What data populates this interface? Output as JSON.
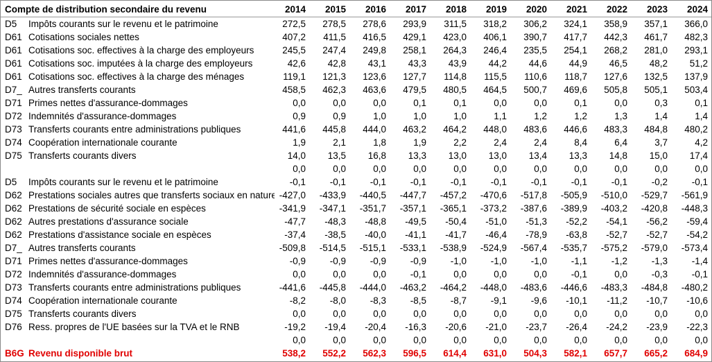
{
  "table": {
    "title": "Compte de distribution secondaire du revenu",
    "years": [
      "2014",
      "2015",
      "2016",
      "2017",
      "2018",
      "2019",
      "2020",
      "2021",
      "2022",
      "2023",
      "2024"
    ],
    "rows": [
      {
        "code": "D5",
        "label": "Impôts courants sur le revenu et le patrimoine",
        "values": [
          "272,5",
          "278,5",
          "278,6",
          "293,9",
          "311,5",
          "318,2",
          "306,2",
          "324,1",
          "358,9",
          "357,1",
          "366,0"
        ]
      },
      {
        "code": "D61",
        "label": "Cotisations sociales nettes",
        "values": [
          "407,2",
          "411,5",
          "416,5",
          "429,1",
          "423,0",
          "406,1",
          "390,7",
          "417,7",
          "442,3",
          "461,7",
          "482,3"
        ]
      },
      {
        "code": "D61",
        "label": "Cotisations soc. effectives à la charge des employeurs",
        "values": [
          "245,5",
          "247,4",
          "249,8",
          "258,1",
          "264,3",
          "246,4",
          "235,5",
          "254,1",
          "268,2",
          "281,0",
          "293,1"
        ]
      },
      {
        "code": "D61",
        "label": "Cotisations soc. imputées à la charge des employeurs",
        "values": [
          "42,6",
          "42,8",
          "43,1",
          "43,3",
          "43,9",
          "44,2",
          "44,6",
          "44,9",
          "46,5",
          "48,2",
          "51,2"
        ]
      },
      {
        "code": "D61",
        "label": "Cotisations soc. effectives à la charge des ménages",
        "values": [
          "119,1",
          "121,3",
          "123,6",
          "127,7",
          "114,8",
          "115,5",
          "110,6",
          "118,7",
          "127,6",
          "132,5",
          "137,9"
        ]
      },
      {
        "code": "D7_",
        "label": "Autres transferts courants",
        "values": [
          "458,5",
          "462,3",
          "463,6",
          "479,5",
          "480,5",
          "464,5",
          "500,7",
          "469,6",
          "505,8",
          "505,1",
          "503,4"
        ]
      },
      {
        "code": "D71",
        "label": "Primes nettes d'assurance-dommages",
        "values": [
          "0,0",
          "0,0",
          "0,0",
          "0,1",
          "0,1",
          "0,0",
          "0,0",
          "0,1",
          "0,0",
          "0,3",
          "0,1"
        ]
      },
      {
        "code": "D72",
        "label": "Indemnités d'assurance-dommages",
        "values": [
          "0,9",
          "0,9",
          "1,0",
          "1,0",
          "1,0",
          "1,1",
          "1,2",
          "1,2",
          "1,3",
          "1,4",
          "1,4"
        ]
      },
      {
        "code": "D73",
        "label": "Transferts courants entre administrations publiques",
        "values": [
          "441,6",
          "445,8",
          "444,0",
          "463,2",
          "464,2",
          "448,0",
          "483,6",
          "446,6",
          "483,3",
          "484,8",
          "480,2"
        ]
      },
      {
        "code": "D74",
        "label": "Coopération internationale courante",
        "values": [
          "1,9",
          "2,1",
          "1,8",
          "1,9",
          "2,2",
          "2,4",
          "2,4",
          "8,4",
          "6,4",
          "3,7",
          "4,2"
        ]
      },
      {
        "code": "D75",
        "label": "Transferts courants divers",
        "values": [
          "14,0",
          "13,5",
          "16,8",
          "13,3",
          "13,0",
          "13,0",
          "13,4",
          "13,3",
          "14,8",
          "15,0",
          "17,4"
        ]
      },
      {
        "values": [
          "0,0",
          "0,0",
          "0,0",
          "0,0",
          "0,0",
          "0,0",
          "0,0",
          "0,0",
          "0,0",
          "0,0",
          "0,0"
        ]
      },
      {
        "code": "D5",
        "label": "Impôts courants sur le revenu et le patrimoine",
        "values": [
          "-0,1",
          "-0,1",
          "-0,1",
          "-0,1",
          "-0,1",
          "-0,1",
          "-0,1",
          "-0,1",
          "-0,1",
          "-0,2",
          "-0,1"
        ]
      },
      {
        "code": "D62",
        "label": "Prestations sociales autres que transferts sociaux en nature",
        "values": [
          "-427,0",
          "-433,9",
          "-440,5",
          "-447,7",
          "-457,2",
          "-470,6",
          "-517,8",
          "-505,9",
          "-510,0",
          "-529,7",
          "-561,9"
        ]
      },
      {
        "code": "D62",
        "label": "Prestations de sécurité sociale en espèces",
        "values": [
          "-341,9",
          "-347,1",
          "-351,7",
          "-357,1",
          "-365,1",
          "-373,2",
          "-387,6",
          "-389,9",
          "-403,2",
          "-420,8",
          "-448,3"
        ]
      },
      {
        "code": "D62",
        "label": "Autres prestations d'assurance sociale",
        "values": [
          "-47,7",
          "-48,3",
          "-48,8",
          "-49,5",
          "-50,4",
          "-51,0",
          "-51,3",
          "-52,2",
          "-54,1",
          "-56,2",
          "-59,4"
        ]
      },
      {
        "code": "D62",
        "label": "Prestations d'assistance sociale en espèces",
        "values": [
          "-37,4",
          "-38,5",
          "-40,0",
          "-41,1",
          "-41,7",
          "-46,4",
          "-78,9",
          "-63,8",
          "-52,7",
          "-52,7",
          "-54,2"
        ]
      },
      {
        "code": "D7_",
        "label": "Autres transferts courants",
        "values": [
          "-509,8",
          "-514,5",
          "-515,1",
          "-533,1",
          "-538,9",
          "-524,9",
          "-567,4",
          "-535,7",
          "-575,2",
          "-579,0",
          "-573,4"
        ]
      },
      {
        "code": "D71",
        "label": "Primes nettes d'assurance-dommages",
        "values": [
          "-0,9",
          "-0,9",
          "-0,9",
          "-0,9",
          "-1,0",
          "-1,0",
          "-1,0",
          "-1,1",
          "-1,2",
          "-1,3",
          "-1,4"
        ]
      },
      {
        "code": "D72",
        "label": "Indemnités d'assurance-dommages",
        "values": [
          "0,0",
          "0,0",
          "0,0",
          "-0,1",
          "0,0",
          "0,0",
          "0,0",
          "-0,1",
          "0,0",
          "-0,3",
          "-0,1"
        ]
      },
      {
        "code": "D73",
        "label": "Transferts courants entre administrations publiques",
        "values": [
          "-441,6",
          "-445,8",
          "-444,0",
          "-463,2",
          "-464,2",
          "-448,0",
          "-483,6",
          "-446,6",
          "-483,3",
          "-484,8",
          "-480,2"
        ]
      },
      {
        "code": "D74",
        "label": "Coopération internationale courante",
        "values": [
          "-8,2",
          "-8,0",
          "-8,3",
          "-8,5",
          "-8,7",
          "-9,1",
          "-9,6",
          "-10,1",
          "-11,2",
          "-10,7",
          "-10,6"
        ]
      },
      {
        "code": "D75",
        "label": "Transferts courants divers",
        "values": [
          "0,0",
          "0,0",
          "0,0",
          "0,0",
          "0,0",
          "0,0",
          "0,0",
          "0,0",
          "0,0",
          "0,0",
          "0,0"
        ]
      },
      {
        "code": "D76",
        "label": "Ress. propres de l'UE basées sur la TVA et le RNB",
        "values": [
          "-19,2",
          "-19,4",
          "-20,4",
          "-16,3",
          "-20,6",
          "-21,0",
          "-23,7",
          "-26,4",
          "-24,2",
          "-23,9",
          "-22,3"
        ]
      },
      {
        "values": [
          "0,0",
          "0,0",
          "0,0",
          "0,0",
          "0,0",
          "0,0",
          "0,0",
          "0,0",
          "0,0",
          "0,0",
          "0,0"
        ]
      }
    ],
    "total": {
      "code": "B6G",
      "label": "Revenu disponible brut",
      "values": [
        "538,2",
        "552,2",
        "562,3",
        "596,5",
        "614,4",
        "631,0",
        "504,3",
        "582,1",
        "657,7",
        "665,2",
        "684,9"
      ]
    }
  }
}
